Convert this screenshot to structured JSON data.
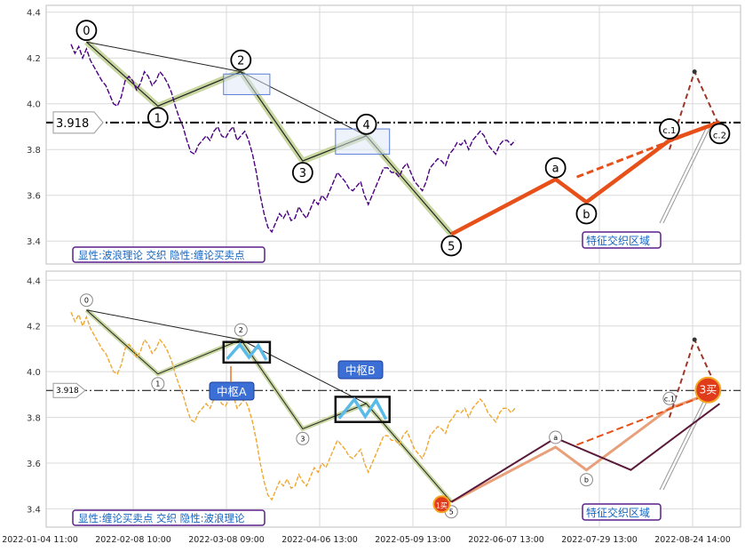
{
  "chart_data": [
    {
      "type": "line",
      "caption": "显性:波浪理论 交织 隐性:缠论买卖点",
      "y_ticks": [
        3.4,
        3.6,
        3.8,
        4.0,
        4.2,
        4.4
      ],
      "ylim": [
        3.3,
        4.43
      ],
      "reference_line": {
        "value": 3.918,
        "label": "3.918"
      },
      "zone_label": "特征交织区域",
      "price_series": {
        "color": "#4b0082",
        "x": [
          0,
          2,
          4,
          6,
          8,
          10,
          12,
          14,
          16,
          18,
          20,
          22,
          24,
          26,
          28,
          30,
          32,
          34,
          36,
          38,
          40,
          42,
          44,
          46,
          48,
          50,
          52,
          54,
          56,
          58,
          60,
          62,
          64,
          66,
          68,
          70,
          72,
          74,
          76,
          78,
          80,
          82,
          84,
          86,
          88,
          90,
          92,
          94,
          96,
          98,
          100,
          102,
          104,
          106,
          108,
          110,
          112,
          114,
          116,
          118,
          120,
          122,
          124,
          126,
          128,
          130,
          132,
          134,
          136,
          138,
          140,
          142,
          144,
          146,
          148,
          150,
          152,
          154,
          156,
          158,
          160,
          162,
          164,
          166,
          168,
          170,
          172,
          174,
          176,
          178,
          180,
          182,
          184,
          186,
          188,
          190,
          192,
          194,
          196,
          198,
          200,
          202,
          204,
          206,
          208,
          210,
          212,
          214,
          216,
          218,
          220,
          222,
          224,
          226,
          228,
          230
        ],
        "y": [
          4.26,
          4.22,
          4.25,
          4.2,
          4.24,
          4.19,
          4.16,
          4.13,
          4.1,
          4.08,
          4.04,
          4.0,
          3.99,
          4.03,
          4.1,
          4.12,
          4.1,
          4.06,
          4.09,
          4.14,
          4.12,
          4.08,
          4.1,
          4.14,
          4.12,
          4.09,
          4.05,
          3.99,
          3.94,
          3.9,
          3.84,
          3.79,
          3.78,
          3.82,
          3.84,
          3.86,
          3.84,
          3.88,
          3.9,
          3.86,
          3.85,
          3.88,
          3.9,
          3.84,
          3.86,
          3.88,
          3.84,
          3.78,
          3.7,
          3.6,
          3.52,
          3.46,
          3.44,
          3.48,
          3.52,
          3.5,
          3.53,
          3.49,
          3.5,
          3.55,
          3.52,
          3.5,
          3.54,
          3.58,
          3.56,
          3.6,
          3.58,
          3.62,
          3.66,
          3.7,
          3.68,
          3.66,
          3.63,
          3.62,
          3.64,
          3.66,
          3.6,
          3.56,
          3.6,
          3.64,
          3.68,
          3.72,
          3.72,
          3.7,
          3.7,
          3.68,
          3.72,
          3.74,
          3.7,
          3.66,
          3.64,
          3.62,
          3.66,
          3.72,
          3.74,
          3.76,
          3.75,
          3.73,
          3.78,
          3.8,
          3.83,
          3.82,
          3.84,
          3.8,
          3.84,
          3.86,
          3.88,
          3.86,
          3.82,
          3.8,
          3.78,
          3.82,
          3.84,
          3.84,
          3.82,
          3.84
        ]
      },
      "wave_points": [
        {
          "label": "0",
          "x": 8,
          "y": 4.27
        },
        {
          "label": "1",
          "x": 45,
          "y": 3.99
        },
        {
          "label": "2",
          "x": 88,
          "y": 4.14
        },
        {
          "label": "3",
          "x": 120,
          "y": 3.75
        },
        {
          "label": "4",
          "x": 153,
          "y": 3.86
        },
        {
          "label": "5",
          "x": 197,
          "y": 3.43
        },
        {
          "label": "a",
          "x": 251,
          "y": 3.67
        },
        {
          "label": "b",
          "x": 267,
          "y": 3.57
        },
        {
          "label": "c.1",
          "x": 310,
          "y": 3.84
        },
        {
          "label": "c.2",
          "x": 336,
          "y": 3.92
        }
      ],
      "peak_marker": {
        "x": 323,
        "y": 4.14
      }
    },
    {
      "type": "line",
      "caption": "显性:缠论买卖点 交织 隐性:波浪理论",
      "y_ticks": [
        3.4,
        3.6,
        3.8,
        4.0,
        4.2,
        4.4
      ],
      "ylim": [
        3.32,
        4.44
      ],
      "reference_line": {
        "value": 3.918,
        "label": "3.918"
      },
      "zone_label": "特征交织区域",
      "zhongshu": [
        {
          "label": "中枢A",
          "x0": 79,
          "x1": 103,
          "y0": 4.04,
          "y1": 4.13
        },
        {
          "label": "中枢B",
          "x0": 137,
          "x1": 165,
          "y0": 3.78,
          "y1": 3.89
        }
      ],
      "buy_points": [
        {
          "label": "1买",
          "x": 192,
          "y": 3.42
        },
        {
          "label": "3买",
          "x": 330,
          "y": 3.92
        }
      ],
      "wave_labels": [
        "0",
        "1",
        "2",
        "3",
        "5",
        "a",
        "b",
        "c.1"
      ],
      "x_tick_labels": [
        "2022-01-04 11:00",
        "2022-02-08 10:00",
        "2022-03-08 09:00",
        "2022-04-06 13:00",
        "2022-05-09 13:00",
        "2022-06-07 13:00",
        "2022-07-29 13:00",
        "2022-08-24 14:00"
      ]
    }
  ],
  "colors": {
    "price_top": "#4b0082",
    "price_bottom": "#f0a830",
    "wave_highlight": "#c8d6a0",
    "bear": "#e8501a",
    "box": "#5b7fd6"
  }
}
